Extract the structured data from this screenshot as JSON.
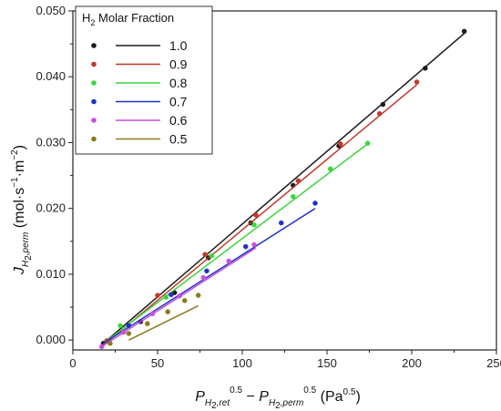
{
  "chart_data": {
    "type": "scatter",
    "xlabel": {
      "main": "P",
      "sub1": "H",
      "sub1_2": "2",
      "sub1_3": ",ret",
      "sup1": "0.5",
      "minus": " − ",
      "main2": "P",
      "sub2": "H",
      "sub2_2": "2",
      "sub2_3": ",perm",
      "sup2": "0.5",
      "unit": " (Pa",
      "unit_sup": "0.5",
      "unit_close": ")"
    },
    "ylabel": {
      "main": "J",
      "sub": "H",
      "sub_2": "2",
      "sub_3": ",perm",
      "unit": " (mol·s",
      "unit_sup1": "−1",
      "unit_mid": "·m",
      "unit_sup2": "−2",
      "unit_close": ")"
    },
    "xlim": [
      0,
      250
    ],
    "ylim": [
      -0.0015,
      0.05
    ],
    "xticks": [
      "0",
      "50",
      "100",
      "150",
      "200",
      "250"
    ],
    "yticks": [
      "0.000",
      "0.010",
      "0.020",
      "0.030",
      "0.040",
      "0.050"
    ],
    "grid": false,
    "legend": {
      "placement": "top-left",
      "title_main": "H",
      "title_sub": "2",
      "title_rest": " Molar Fraction"
    },
    "series": [
      {
        "name": "1.0",
        "color": "#1a1a1a",
        "points": [
          [
            18,
            -0.0005
          ],
          [
            40,
            0.0028
          ],
          [
            60,
            0.0072
          ],
          [
            80,
            0.0125
          ],
          [
            105,
            0.0178
          ],
          [
            130,
            0.0235
          ],
          [
            157,
            0.0295
          ],
          [
            183,
            0.0358
          ],
          [
            208,
            0.0413
          ],
          [
            231,
            0.0469
          ]
        ],
        "fit": [
          [
            18,
            -0.0005
          ],
          [
            232,
            0.0468
          ]
        ]
      },
      {
        "name": "0.9",
        "color": "#c0392b",
        "points": [
          [
            20,
            -0.0001
          ],
          [
            50,
            0.0068
          ],
          [
            78,
            0.013
          ],
          [
            108,
            0.019
          ],
          [
            133,
            0.0242
          ],
          [
            158,
            0.0298
          ],
          [
            181,
            0.0344
          ],
          [
            203,
            0.0392
          ]
        ],
        "fit": [
          [
            18,
            -0.0008
          ],
          [
            203,
            0.0388
          ]
        ]
      },
      {
        "name": "0.8",
        "color": "#3cd43c",
        "points": [
          [
            28,
            0.0022
          ],
          [
            55,
            0.0065
          ],
          [
            82,
            0.0128
          ],
          [
            107,
            0.0175
          ],
          [
            130,
            0.0218
          ],
          [
            152,
            0.026
          ],
          [
            174,
            0.0299
          ]
        ],
        "fit": [
          [
            18,
            -0.0005
          ],
          [
            175,
            0.03
          ]
        ]
      },
      {
        "name": "0.7",
        "color": "#2030c8",
        "points": [
          [
            33,
            0.0022
          ],
          [
            58,
            0.0069
          ],
          [
            79,
            0.0105
          ],
          [
            102,
            0.0142
          ],
          [
            123,
            0.0178
          ],
          [
            143,
            0.0208
          ]
        ],
        "fit": [
          [
            18,
            -0.0005
          ],
          [
            143,
            0.02
          ]
        ]
      },
      {
        "name": "0.6",
        "color": "#c84fe0",
        "points": [
          [
            17,
            -0.001
          ],
          [
            30,
            0.0012
          ],
          [
            47,
            0.004
          ],
          [
            63,
            0.0067
          ],
          [
            77,
            0.0095
          ],
          [
            92,
            0.012
          ],
          [
            107,
            0.0145
          ]
        ],
        "fit": [
          [
            17,
            -0.001
          ],
          [
            108,
            0.014
          ]
        ]
      },
      {
        "name": "0.5",
        "color": "#8a7a1a",
        "points": [
          [
            22,
            -0.0005
          ],
          [
            33,
            0.001
          ],
          [
            44,
            0.0025
          ],
          [
            56,
            0.0043
          ],
          [
            66,
            0.006
          ],
          [
            74,
            0.0068
          ]
        ],
        "fit": [
          [
            33,
            0.0
          ],
          [
            74,
            0.0052
          ]
        ]
      }
    ]
  }
}
